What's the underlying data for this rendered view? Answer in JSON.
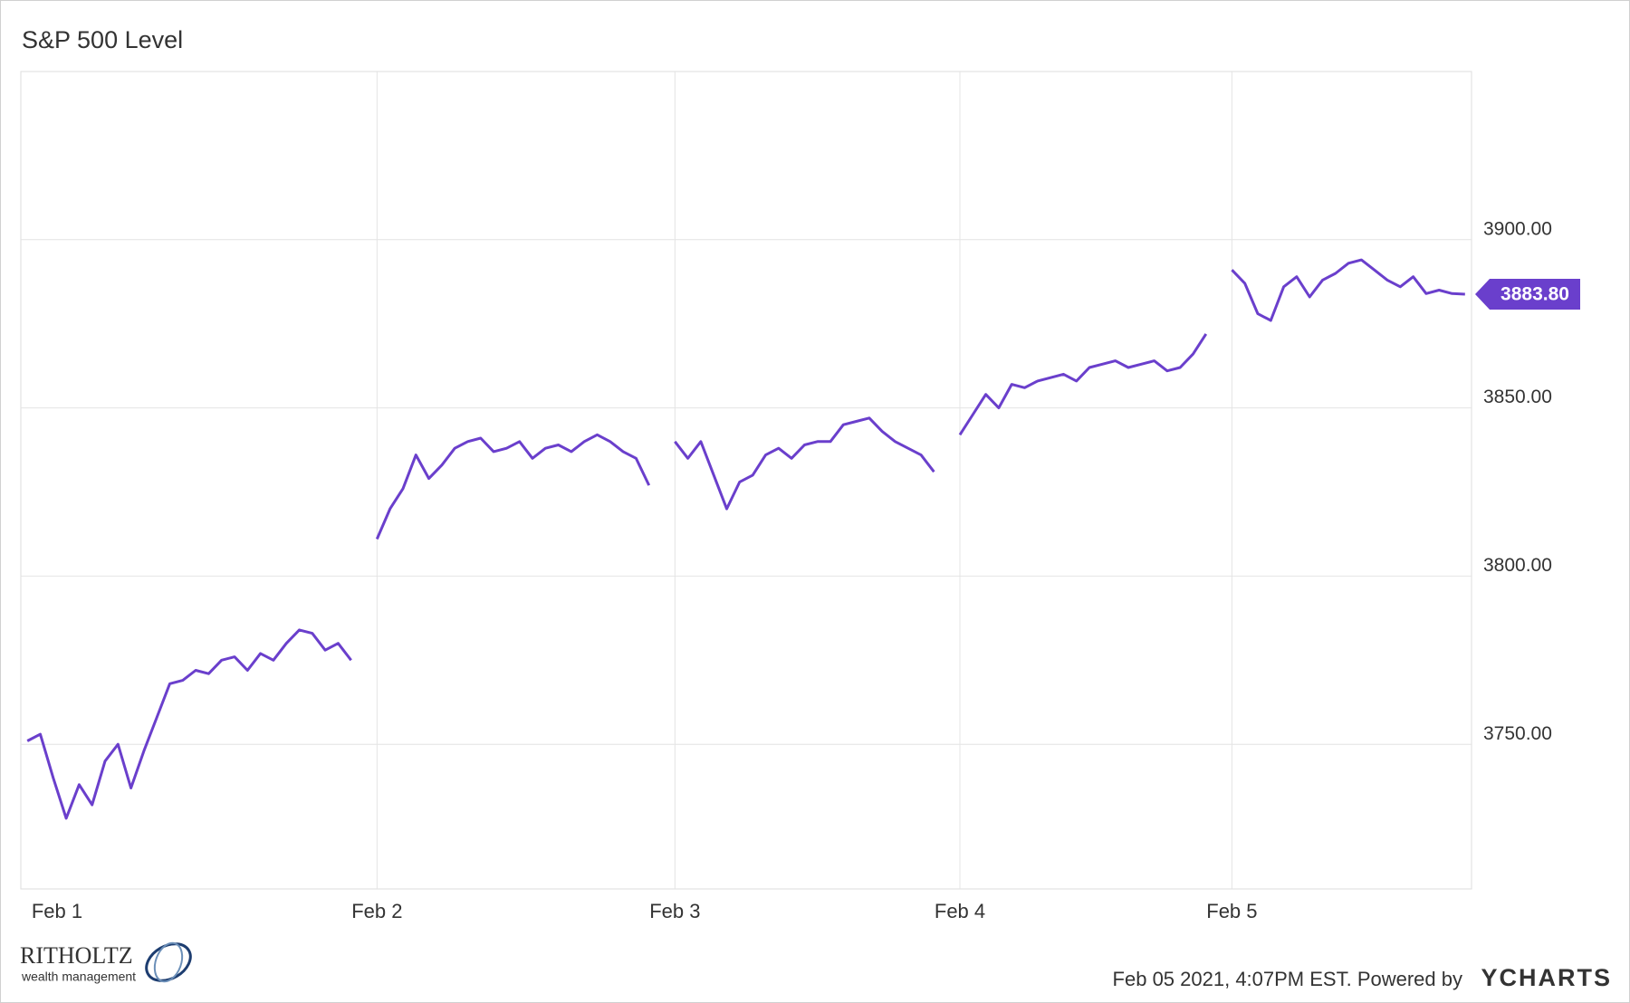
{
  "chart_data": {
    "type": "line",
    "title": "S&P 500 Level",
    "categories": [
      "Feb 1",
      null,
      null,
      null,
      null,
      null,
      null,
      null,
      null,
      null,
      null,
      null,
      null,
      null,
      null,
      null,
      null,
      null,
      null,
      null,
      null,
      null,
      null,
      null,
      null,
      null,
      null,
      "Feb 2",
      null,
      null,
      null,
      null,
      null,
      null,
      null,
      null,
      null,
      null,
      null,
      null,
      null,
      null,
      null,
      null,
      null,
      null,
      null,
      null,
      null,
      null,
      "Feb 3",
      null,
      null,
      null,
      null,
      null,
      null,
      null,
      null,
      null,
      null,
      null,
      null,
      null,
      null,
      null,
      null,
      null,
      null,
      null,
      null,
      null,
      "Feb 4",
      null,
      null,
      null,
      null,
      null,
      null,
      null,
      null,
      null,
      null,
      null,
      null,
      null,
      null,
      null,
      null,
      null,
      null,
      null,
      null,
      "Feb 5",
      null,
      null,
      null,
      null,
      null,
      null,
      null,
      null,
      null,
      null,
      null,
      null,
      null,
      null,
      null,
      null,
      null,
      null
    ],
    "series": [
      {
        "name": "S&P 500 Level",
        "color": "#6a3fcc",
        "values": [
          3751,
          3753,
          3740,
          3728,
          3738,
          3732,
          3745,
          3750,
          3737,
          3748,
          3758,
          3768,
          3769,
          3772,
          3771,
          3775,
          3776,
          3772,
          3777,
          3775,
          3780,
          3784,
          3783,
          3778,
          3780,
          3775,
          null,
          3811,
          3820,
          3826,
          3836,
          3829,
          3833,
          3838,
          3840,
          3841,
          3837,
          3838,
          3840,
          3835,
          3838,
          3839,
          3837,
          3840,
          3842,
          3840,
          3837,
          3835,
          3827,
          null,
          3840,
          3835,
          3840,
          3830,
          3820,
          3828,
          3830,
          3836,
          3838,
          3835,
          3839,
          3840,
          3840,
          3845,
          3846,
          3847,
          3843,
          3840,
          3838,
          3836,
          3831,
          null,
          3842,
          3848,
          3854,
          3850,
          3857,
          3856,
          3858,
          3859,
          3860,
          3858,
          3862,
          3863,
          3864,
          3862,
          3863,
          3864,
          3861,
          3862,
          3866,
          3872,
          null,
          3891,
          3887,
          3878,
          3876,
          3886,
          3889,
          3883,
          3888,
          3890,
          3893,
          3894,
          3891,
          3888,
          3886,
          3889,
          3884,
          3885,
          3884,
          3883.8
        ]
      }
    ],
    "end_label": {
      "value": 3883.8,
      "label": "3883.80"
    },
    "ylim": [
      3707,
      3950
    ],
    "yticks": [
      {
        "value": 3750,
        "label": "3750.00"
      },
      {
        "value": 3800,
        "label": "3800.00"
      },
      {
        "value": 3850,
        "label": "3850.00"
      },
      {
        "value": 3900,
        "label": "3900.00"
      }
    ],
    "grid": true,
    "footer": {
      "timestamp": "Feb 05 2021, 4:07PM EST. Powered by",
      "brand": "YCHARTS",
      "logo_name": "RITHOLTZ",
      "logo_tagline": "wealth management"
    }
  }
}
